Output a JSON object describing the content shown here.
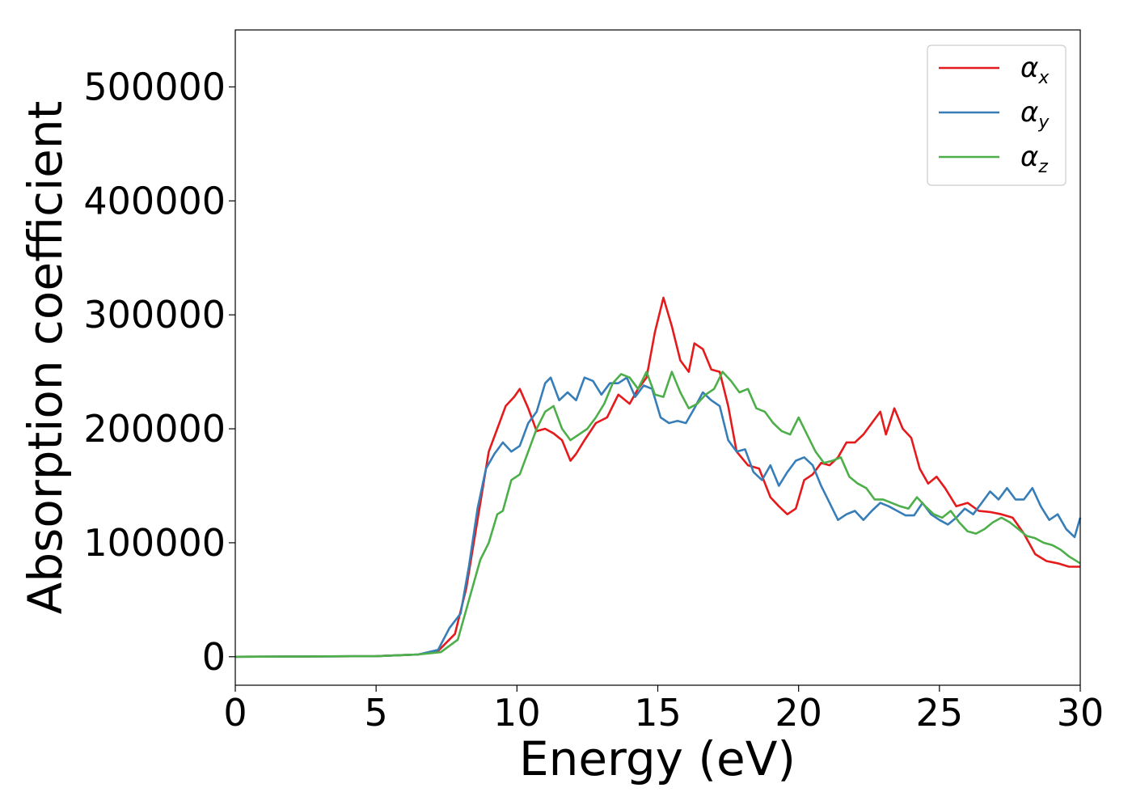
{
  "chart_data": {
    "type": "line",
    "title": "",
    "xlabel": "Energy (eV)",
    "ylabel": "Absorption coefficient",
    "xlim": [
      0,
      30
    ],
    "ylim": [
      -25000,
      550000
    ],
    "xticks": [
      0,
      5,
      10,
      15,
      20,
      25,
      30
    ],
    "xtick_labels": [
      "0",
      "5",
      "10",
      "15",
      "20",
      "25",
      "30"
    ],
    "yticks": [
      0,
      100000,
      200000,
      300000,
      400000,
      500000
    ],
    "ytick_labels": [
      "0",
      "100000",
      "200000",
      "300000",
      "400000",
      "500000"
    ],
    "grid": false,
    "legend_position": "top-right",
    "series": [
      {
        "name": "α_x",
        "symbol": "α",
        "subscript": "x",
        "color": "#e41a1c",
        "x": [
          0,
          5,
          6.5,
          7.2,
          7.8,
          8.2,
          8.6,
          9.0,
          9.3,
          9.6,
          9.9,
          10.1,
          10.4,
          10.7,
          11.0,
          11.3,
          11.6,
          11.9,
          12.1,
          12.4,
          12.8,
          13.2,
          13.6,
          14.0,
          14.3,
          14.6,
          14.9,
          15.2,
          15.5,
          15.8,
          16.1,
          16.3,
          16.6,
          16.9,
          17.2,
          17.5,
          17.8,
          18.2,
          18.6,
          19.0,
          19.3,
          19.6,
          19.9,
          20.2,
          20.5,
          20.8,
          21.1,
          21.4,
          21.7,
          22.0,
          22.3,
          22.6,
          22.9,
          23.1,
          23.4,
          23.7,
          24.0,
          24.3,
          24.6,
          24.9,
          25.2,
          25.6,
          26.0,
          26.4,
          26.8,
          27.2,
          27.6,
          28.0,
          28.4,
          28.8,
          29.2,
          29.6,
          30.0
        ],
        "y": [
          0,
          500,
          2000,
          5000,
          20000,
          60000,
          120000,
          180000,
          200000,
          220000,
          228000,
          235000,
          218000,
          198000,
          200000,
          196000,
          190000,
          172000,
          178000,
          190000,
          205000,
          210000,
          230000,
          222000,
          235000,
          245000,
          285000,
          315000,
          290000,
          260000,
          250000,
          275000,
          270000,
          252000,
          250000,
          220000,
          180000,
          168000,
          165000,
          140000,
          132000,
          125000,
          130000,
          155000,
          160000,
          170000,
          168000,
          175000,
          188000,
          188000,
          195000,
          205000,
          215000,
          195000,
          218000,
          200000,
          192000,
          165000,
          152000,
          158000,
          148000,
          132000,
          135000,
          128000,
          127000,
          125000,
          122000,
          108000,
          90000,
          84000,
          82000,
          79000,
          79000
        ]
      },
      {
        "name": "α_y",
        "symbol": "α",
        "subscript": "y",
        "color": "#377eb8",
        "x": [
          0,
          5,
          6.5,
          7.2,
          7.6,
          8.0,
          8.3,
          8.6,
          8.9,
          9.2,
          9.5,
          9.8,
          10.1,
          10.4,
          10.7,
          11.0,
          11.2,
          11.5,
          11.8,
          12.1,
          12.4,
          12.7,
          13.0,
          13.3,
          13.6,
          13.9,
          14.2,
          14.5,
          14.8,
          15.1,
          15.4,
          15.7,
          16.0,
          16.3,
          16.6,
          16.9,
          17.2,
          17.5,
          17.8,
          18.1,
          18.4,
          18.7,
          19.0,
          19.3,
          19.6,
          19.9,
          20.2,
          20.5,
          20.8,
          21.1,
          21.4,
          21.7,
          22.0,
          22.3,
          22.6,
          22.9,
          23.2,
          23.5,
          23.8,
          24.1,
          24.4,
          24.7,
          25.0,
          25.3,
          25.6,
          25.9,
          26.2,
          26.5,
          26.8,
          27.1,
          27.4,
          27.7,
          28.0,
          28.3,
          28.6,
          28.9,
          29.2,
          29.5,
          29.8,
          30.0
        ],
        "y": [
          0,
          500,
          2000,
          6000,
          25000,
          38000,
          80000,
          130000,
          165000,
          178000,
          188000,
          180000,
          185000,
          205000,
          215000,
          240000,
          245000,
          225000,
          232000,
          225000,
          245000,
          242000,
          230000,
          240000,
          240000,
          245000,
          228000,
          238000,
          235000,
          210000,
          205000,
          207000,
          205000,
          218000,
          232000,
          225000,
          220000,
          190000,
          180000,
          182000,
          162000,
          155000,
          168000,
          150000,
          162000,
          172000,
          175000,
          168000,
          150000,
          135000,
          120000,
          125000,
          128000,
          120000,
          128000,
          135000,
          132000,
          128000,
          124000,
          124000,
          135000,
          125000,
          120000,
          116000,
          122000,
          130000,
          125000,
          135000,
          145000,
          138000,
          148000,
          138000,
          138000,
          148000,
          132000,
          120000,
          125000,
          112000,
          105000,
          122000
        ]
      },
      {
        "name": "α_z",
        "symbol": "α",
        "subscript": "z",
        "color": "#4daf4a",
        "x": [
          0,
          5,
          6.5,
          7.3,
          7.9,
          8.3,
          8.7,
          9.0,
          9.3,
          9.5,
          9.8,
          10.1,
          10.4,
          10.7,
          11.0,
          11.3,
          11.6,
          11.9,
          12.2,
          12.5,
          12.8,
          13.1,
          13.4,
          13.7,
          14.0,
          14.3,
          14.6,
          14.9,
          15.2,
          15.5,
          15.8,
          16.1,
          16.4,
          16.7,
          17.0,
          17.3,
          17.6,
          17.9,
          18.2,
          18.5,
          18.8,
          19.1,
          19.4,
          19.7,
          20.0,
          20.3,
          20.6,
          20.9,
          21.2,
          21.5,
          21.8,
          22.1,
          22.4,
          22.7,
          23.0,
          23.3,
          23.6,
          23.9,
          24.2,
          24.5,
          24.8,
          25.1,
          25.4,
          25.7,
          26.0,
          26.3,
          26.6,
          26.9,
          27.2,
          27.5,
          27.8,
          28.1,
          28.4,
          28.7,
          29.0,
          29.3,
          29.6,
          30.0
        ],
        "y": [
          0,
          500,
          2000,
          4000,
          15000,
          50000,
          85000,
          100000,
          125000,
          128000,
          155000,
          160000,
          180000,
          200000,
          215000,
          220000,
          200000,
          190000,
          195000,
          200000,
          210000,
          222000,
          240000,
          248000,
          245000,
          235000,
          250000,
          230000,
          228000,
          250000,
          232000,
          218000,
          222000,
          230000,
          235000,
          250000,
          242000,
          232000,
          235000,
          218000,
          215000,
          205000,
          198000,
          195000,
          210000,
          195000,
          180000,
          170000,
          172000,
          175000,
          158000,
          152000,
          148000,
          138000,
          138000,
          135000,
          132000,
          130000,
          140000,
          132000,
          125000,
          122000,
          128000,
          118000,
          110000,
          108000,
          112000,
          118000,
          122000,
          118000,
          112000,
          106000,
          104000,
          100000,
          98000,
          94000,
          88000,
          82000
        ]
      }
    ]
  }
}
